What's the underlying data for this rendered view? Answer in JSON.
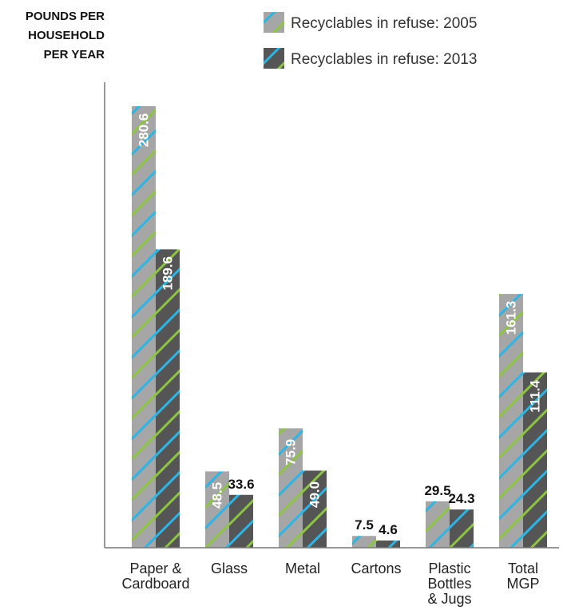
{
  "chart_data": {
    "type": "bar",
    "ylabel_lines": [
      "POUNDS PER",
      "HOUSEHOLD",
      "PER YEAR"
    ],
    "categories": [
      [
        "Paper &",
        "Cardboard"
      ],
      [
        "Glass"
      ],
      [
        "Metal"
      ],
      [
        "Cartons"
      ],
      [
        "Plastic",
        "Bottles",
        "& Jugs"
      ],
      [
        "Total",
        "MGP"
      ]
    ],
    "series": [
      {
        "name": "Recyclables in refuse: 2005",
        "values": [
          280.6,
          48.5,
          75.9,
          7.5,
          29.5,
          161.3
        ],
        "value_labels": [
          "280.6",
          "48.5",
          "75.9",
          "7.5",
          "29.5",
          "161.3"
        ],
        "color": "#a6a6a6"
      },
      {
        "name": "Recyclables in refuse: 2013",
        "values": [
          189.6,
          33.6,
          49.0,
          4.6,
          24.3,
          111.4
        ],
        "value_labels": [
          "189.6",
          "33.6",
          "49.0",
          "4.6",
          "24.3",
          "111.4"
        ],
        "color": "#555555"
      }
    ],
    "stripe_colors": [
      "#29b6e8",
      "#8cc63f"
    ],
    "ylim": [
      0,
      280.6
    ],
    "grid": false,
    "legend_position": "top"
  }
}
